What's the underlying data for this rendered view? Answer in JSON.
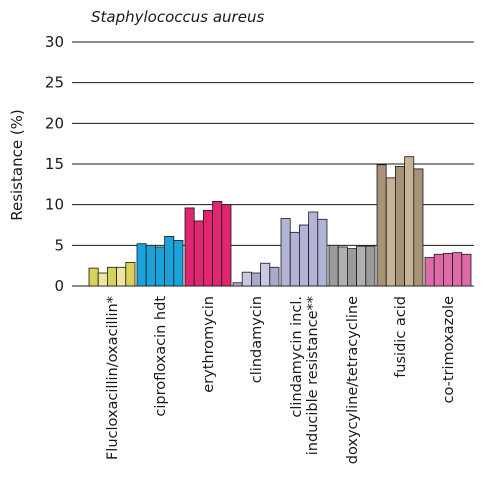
{
  "chart_data": {
    "type": "bar",
    "title": "Staphylococcus aureus",
    "ylabel": "Resistance (%)",
    "xlabel": "",
    "ylim": [
      0,
      30
    ],
    "yticks": [
      0,
      5,
      10,
      15,
      20,
      25,
      30
    ],
    "grid": true,
    "groups": [
      {
        "category": [
          "Flucloxacillin/oxacillin*"
        ],
        "color": "#d9d25a",
        "alt_color": "#ece79a",
        "values": [
          2.2,
          1.6,
          2.3,
          2.3,
          2.9
        ]
      },
      {
        "category": [
          "ciprofloxacin hdt"
        ],
        "color": "#1aa3d9",
        "alt_color": "#1aa3d9",
        "values": [
          5.2,
          5.0,
          4.8,
          6.1,
          5.6
        ]
      },
      {
        "category": [
          "erythromycin"
        ],
        "color": "#e0266e",
        "alt_color": "#e0266e",
        "values": [
          9.6,
          8.0,
          9.3,
          10.4,
          10.0
        ]
      },
      {
        "category": [
          "clindamycin"
        ],
        "color": "#a9a9cc",
        "alt_color": "#c9c9e2",
        "values": [
          0.4,
          1.7,
          1.6,
          2.8,
          2.3
        ]
      },
      {
        "category": [
          "clindamycin incl.",
          "inducible resistance**"
        ],
        "color": "#b3b3d6",
        "alt_color": "#b3b3d6",
        "values": [
          8.3,
          6.6,
          7.5,
          9.1,
          8.2
        ]
      },
      {
        "category": [
          "doxycyline/tetracycline"
        ],
        "color": "#9b9b9b",
        "alt_color": "#b0b0b0",
        "values": [
          5.0,
          4.8,
          4.6,
          4.9,
          4.9
        ]
      },
      {
        "category": [
          "fusidic acid"
        ],
        "color": "#a89276",
        "alt_color": "#c7b298",
        "values": [
          14.9,
          13.3,
          14.7,
          15.9,
          14.4
        ]
      },
      {
        "category": [
          "co-trimoxazole"
        ],
        "color": "#e06aa8",
        "alt_color": "#e06aa8",
        "values": [
          3.5,
          3.9,
          4.0,
          4.1,
          3.9
        ]
      }
    ]
  }
}
